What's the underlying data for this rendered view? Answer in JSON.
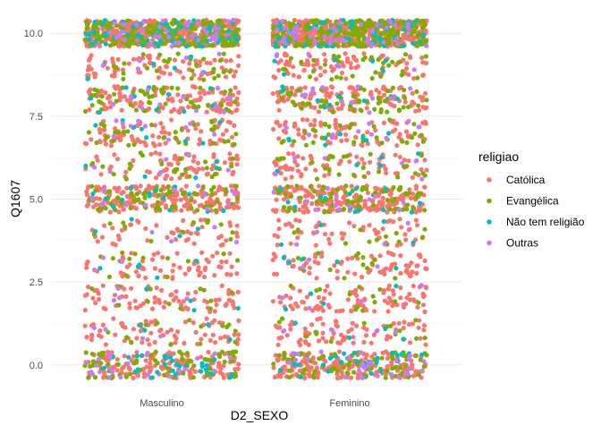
{
  "chart_data": {
    "type": "scatter",
    "jitter": true,
    "xlabel": "D2_SEXO",
    "ylabel": "Q1607",
    "categories": [
      "Masculino",
      "Feminino"
    ],
    "ylim": [
      -0.6,
      10.6
    ],
    "y_ticks": [
      "0.0",
      "2.5",
      "5.0",
      "7.5",
      "10.0"
    ],
    "y_tick_values": [
      0,
      2.5,
      5,
      7.5,
      10
    ],
    "grid": true,
    "legend": {
      "title": "religiao",
      "placement": "right"
    },
    "series": [
      {
        "name": "Católica",
        "color": "#F8766D",
        "counts": {
          "Masculino": [
            150,
            75,
            75,
            65,
            48,
            195,
            70,
            85,
            120,
            80,
            430
          ],
          "Feminino": [
            185,
            80,
            90,
            75,
            55,
            215,
            72,
            88,
            125,
            85,
            520
          ]
        }
      },
      {
        "name": "Evangélica",
        "color": "#7CAE00",
        "counts": {
          "Masculino": [
            70,
            14,
            12,
            14,
            12,
            65,
            24,
            30,
            50,
            30,
            220
          ],
          "Feminino": [
            78,
            14,
            13,
            14,
            12,
            70,
            25,
            32,
            52,
            32,
            240
          ]
        }
      },
      {
        "name": "Não tem religião",
        "color": "#00BFC4",
        "counts": {
          "Masculino": [
            28,
            4,
            4,
            5,
            4,
            14,
            5,
            8,
            10,
            6,
            60
          ],
          "Feminino": [
            30,
            4,
            4,
            5,
            4,
            14,
            5,
            8,
            10,
            6,
            55
          ]
        }
      },
      {
        "name": "Outras",
        "color": "#C77CFF",
        "counts": {
          "Masculino": [
            22,
            4,
            4,
            3,
            4,
            12,
            6,
            10,
            12,
            6,
            40
          ],
          "Feminino": [
            28,
            4,
            4,
            3,
            4,
            12,
            6,
            10,
            12,
            6,
            45
          ]
        }
      }
    ]
  }
}
